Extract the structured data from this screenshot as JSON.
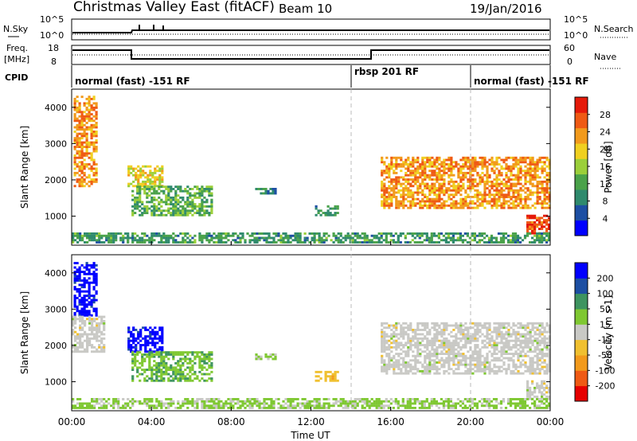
{
  "header": {
    "station": "Christmas Valley East (fitACF)",
    "beam": "Beam 10",
    "date": "19/Jan/2016"
  },
  "summary_panels": {
    "nsky": {
      "label": "N.Sky",
      "ticks": [
        "10^5",
        "10^0"
      ]
    },
    "nsearch": {
      "label": "N.Search",
      "ticks": [
        "10^5",
        "10^0"
      ]
    },
    "freq": {
      "label": "Freq.",
      "unit": "[MHz]",
      "ticks": [
        "18",
        "8"
      ]
    },
    "nave": {
      "label": "Nave",
      "ticks": [
        "60",
        "0"
      ]
    },
    "cpid": {
      "label": "CPID",
      "segments": [
        {
          "name": "normal (fast) -151 RF",
          "start_h": 0.0
        },
        {
          "name": "rbsp 201 RF",
          "start_h": 14.0
        },
        {
          "name": "normal (fast) -151 RF",
          "start_h": 20.0
        }
      ]
    }
  },
  "chart_data": [
    {
      "type": "heatmap",
      "title": "Power",
      "ylabel": "Slant Range [km]",
      "xlim_hours": [
        0,
        24
      ],
      "ylim": [
        200,
        4500
      ],
      "yticks": [
        "4000",
        "3000",
        "2000",
        "1000"
      ],
      "colorbar": {
        "label": "Power [dB]",
        "ticks": [
          "28",
          "24",
          "20",
          "16",
          "12",
          "8",
          "4"
        ],
        "range": [
          0,
          30
        ]
      },
      "regions": [
        {
          "t": [
            0.1,
            1.3
          ],
          "r": [
            1800,
            4300
          ],
          "v": 22
        },
        {
          "t": [
            2.8,
            4.5
          ],
          "r": [
            1800,
            2400
          ],
          "v": 18
        },
        {
          "t": [
            3.0,
            7.0
          ],
          "r": [
            1000,
            1800
          ],
          "v": 12
        },
        {
          "t": [
            9.2,
            10.2
          ],
          "r": [
            1600,
            1750
          ],
          "v": 8
        },
        {
          "t": [
            12.2,
            13.3
          ],
          "r": [
            1000,
            1300
          ],
          "v": 10
        },
        {
          "t": [
            15.5,
            24.0
          ],
          "r": [
            1200,
            2600
          ],
          "v": 22
        },
        {
          "t": [
            22.8,
            24.0
          ],
          "r": [
            500,
            1000
          ],
          "v": 27
        },
        {
          "t": [
            0.0,
            24.0
          ],
          "r": [
            250,
            500
          ],
          "v": 10
        }
      ]
    },
    {
      "type": "heatmap",
      "title": "Velocity",
      "ylabel": "Slant Range [km]",
      "xlabel": "Time UT",
      "xlim_hours": [
        0,
        24
      ],
      "ylim": [
        200,
        4500
      ],
      "yticks": [
        "4000",
        "3000",
        "2000",
        "1000"
      ],
      "xticks": [
        "00:00",
        "04:00",
        "08:00",
        "12:00",
        "16:00",
        "20:00",
        "00:00"
      ],
      "colorbar": {
        "label": "Velocity [m s-1]",
        "ticks": [
          "200",
          "100",
          "50",
          "15",
          "-15",
          "-50",
          "-100",
          "-200"
        ],
        "range": [
          -250,
          250
        ]
      },
      "regions": [
        {
          "t": [
            0.1,
            1.3
          ],
          "r": [
            2800,
            4300
          ],
          "v": 220
        },
        {
          "t": [
            0.0,
            1.6
          ],
          "r": [
            1800,
            2800
          ],
          "v": 0
        },
        {
          "t": [
            2.8,
            4.5
          ],
          "r": [
            1800,
            2500
          ],
          "v": 220
        },
        {
          "t": [
            3.0,
            7.0
          ],
          "r": [
            1000,
            1800
          ],
          "v": 70
        },
        {
          "t": [
            9.2,
            10.2
          ],
          "r": [
            1600,
            1750
          ],
          "v": 40
        },
        {
          "t": [
            12.2,
            13.3
          ],
          "r": [
            1000,
            1300
          ],
          "v": -60
        },
        {
          "t": [
            15.5,
            24.0
          ],
          "r": [
            1200,
            2600
          ],
          "v": 0
        },
        {
          "t": [
            22.8,
            24.0
          ],
          "r": [
            500,
            1000
          ],
          "v": 0
        },
        {
          "t": [
            0.0,
            24.0
          ],
          "r": [
            250,
            500
          ],
          "v": 40
        }
      ]
    }
  ]
}
